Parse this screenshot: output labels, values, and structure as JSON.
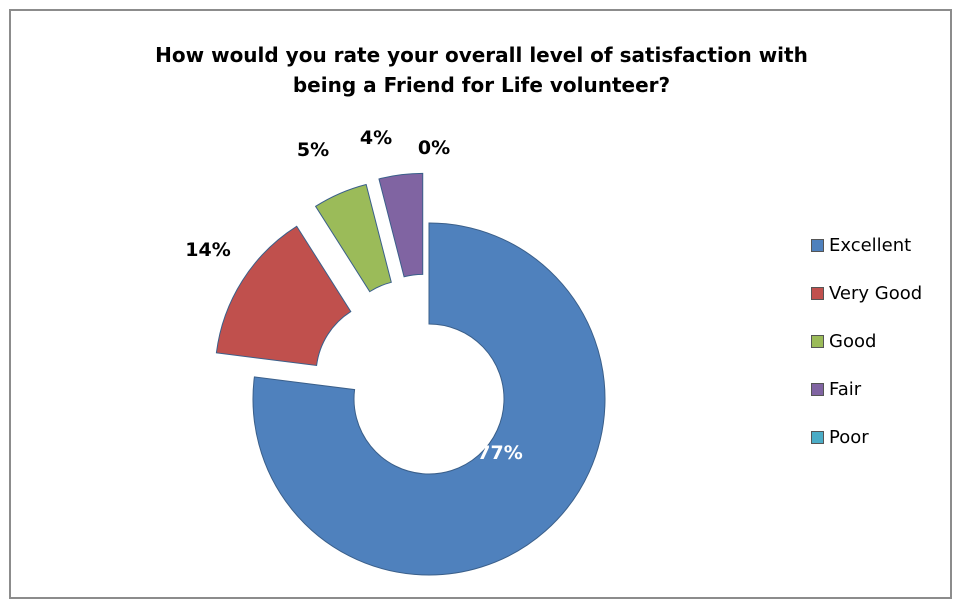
{
  "chart_data": {
    "type": "pie",
    "style": "exploded doughnut",
    "title_lines": [
      "How would you rate your overall level of satisfaction with",
      "being a Friend for Life volunteer?"
    ],
    "categories": [
      "Excellent",
      "Very Good",
      "Good",
      "Fair",
      "Poor"
    ],
    "values": [
      77,
      14,
      5,
      4,
      0
    ],
    "labels": [
      "77%",
      "14%",
      "5%",
      "4%",
      "0%"
    ],
    "colors": [
      "#4f81bd",
      "#c0504d",
      "#9bbb59",
      "#8064a2",
      "#4bacc6"
    ],
    "legend_position": "right"
  }
}
